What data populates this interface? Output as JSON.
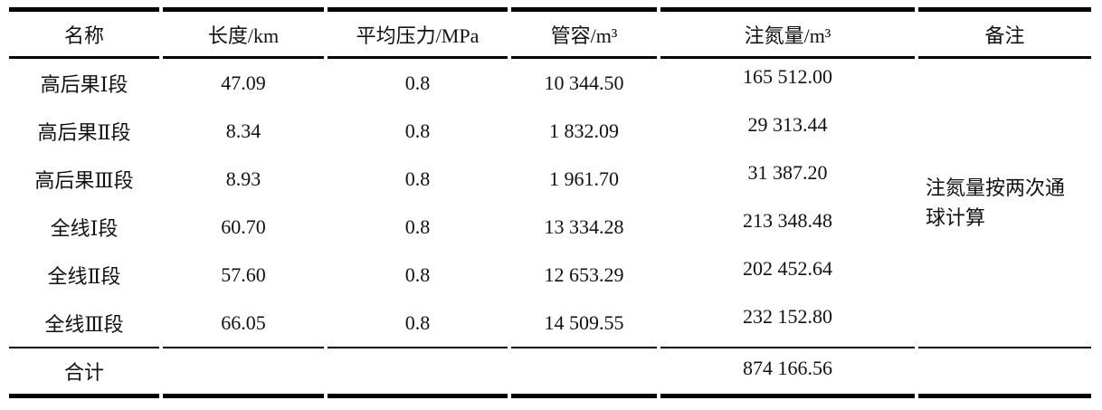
{
  "colors": {
    "background": "#ffffff",
    "text": "#111111",
    "rule": "#000000"
  },
  "table": {
    "columns": [
      {
        "key": "name",
        "label": "名称"
      },
      {
        "key": "length",
        "label": "长度/km"
      },
      {
        "key": "pressure",
        "label": "平均压力/MPa"
      },
      {
        "key": "volume",
        "label": "管容/m³"
      },
      {
        "key": "nitrogen",
        "label": "注氮量/m³"
      },
      {
        "key": "remark",
        "label": "备注"
      }
    ],
    "rows": [
      {
        "name": "高后果Ⅰ段",
        "length": "47.09",
        "pressure": "0.8",
        "volume": "10 344.50",
        "nitrogen": "165 512.00"
      },
      {
        "name": "高后果Ⅱ段",
        "length": "8.34",
        "pressure": "0.8",
        "volume": "1 832.09",
        "nitrogen": "29 313.44"
      },
      {
        "name": "高后果Ⅲ段",
        "length": "8.93",
        "pressure": "0.8",
        "volume": "1 961.70",
        "nitrogen": "31 387.20"
      },
      {
        "name": "全线Ⅰ段",
        "length": "60.70",
        "pressure": "0.8",
        "volume": "13 334.28",
        "nitrogen": "213 348.48"
      },
      {
        "name": "全线Ⅱ段",
        "length": "57.60",
        "pressure": "0.8",
        "volume": "12 653.29",
        "nitrogen": "202 452.64"
      },
      {
        "name": "全线Ⅲ段",
        "length": "66.05",
        "pressure": "0.8",
        "volume": "14 509.55",
        "nitrogen": "232 152.80"
      }
    ],
    "remark": "注氮量按两次通球计算",
    "total": {
      "label": "合计",
      "nitrogen": "874 166.56"
    }
  }
}
